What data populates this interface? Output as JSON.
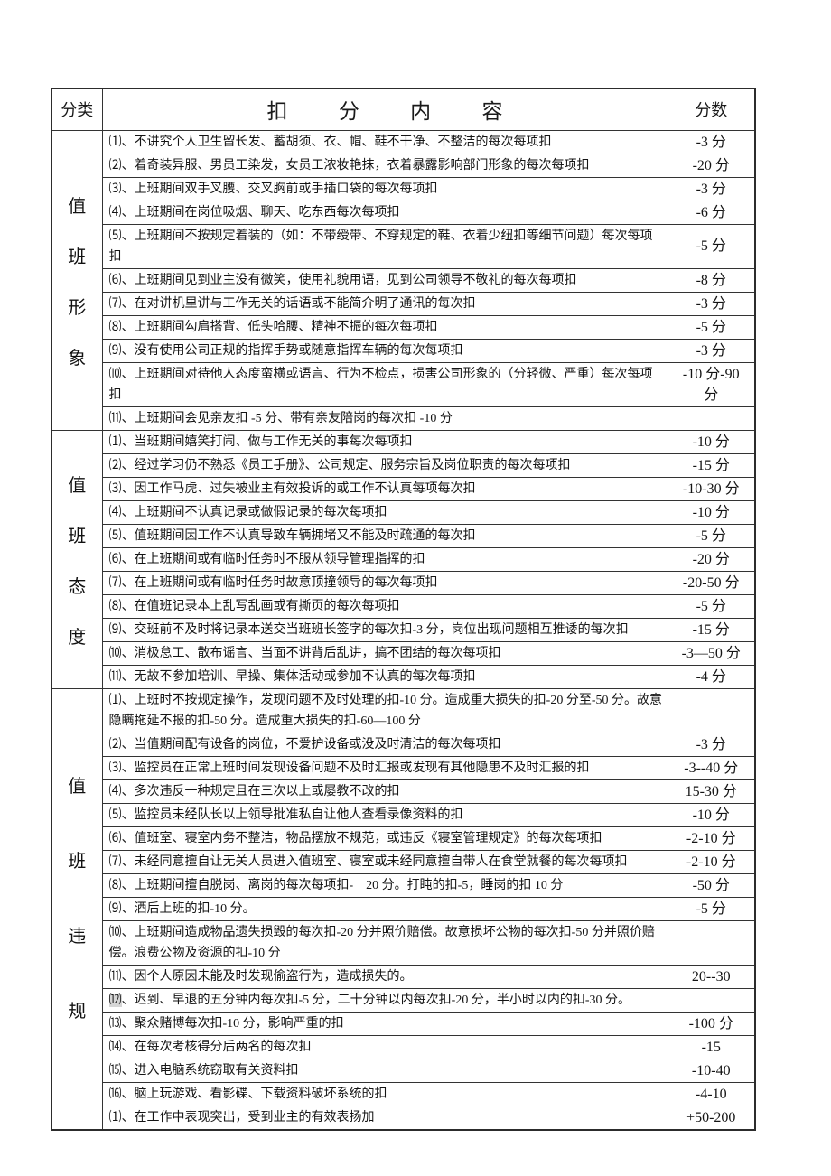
{
  "colors": {
    "background": "#ffffff",
    "border": "#333333",
    "text": "#141414",
    "marker_highlight": "#d6d6d6"
  },
  "table": {
    "header": {
      "category": "分类",
      "content": "扣分内容",
      "score": "分数"
    },
    "sections": [
      {
        "category": "值班形象",
        "category_chars": [
          "值",
          "班",
          "形",
          "象"
        ],
        "rows": [
          {
            "num": "⑴",
            "text": "、不讲究个人卫生留长发、蓄胡须、衣、帽、鞋不干净、不整洁的每次每项扣",
            "score": "-3 分"
          },
          {
            "num": "⑵",
            "text": "、着奇装异服、男员工染发，女员工浓妆艳抹，衣着暴露影响部门形象的每次每项扣",
            "score": "-20 分"
          },
          {
            "num": "⑶",
            "text": "、上班期间双手叉腰、交叉胸前或手插口袋的每次每项扣",
            "score": "-3 分"
          },
          {
            "num": "⑷",
            "text": "、上班期间在岗位吸烟、聊天、吃东西每次每项扣",
            "score": "-6 分"
          },
          {
            "num": "⑸",
            "text": "、上班期间不按规定着装的（如：不带绶带、不穿规定的鞋、衣着少纽扣等细节问题）每次每项扣",
            "score": "-5 分"
          },
          {
            "num": "⑹",
            "text": "、上班期间见到业主没有微笑，使用礼貌用语，见到公司领导不敬礼的每次每项扣",
            "score": "-8 分"
          },
          {
            "num": "⑺",
            "text": "、在对讲机里讲与工作无关的话语或不能简介明了通讯的每次扣",
            "score": "-3 分"
          },
          {
            "num": "⑻",
            "text": "、上班期间勾肩搭背、低头哈腰、精神不振的每次每项扣",
            "score": "-5 分"
          },
          {
            "num": "⑼",
            "text": "、没有使用公司正规的指挥手势或随意指挥车辆的每次每项扣",
            "score": "-3 分"
          },
          {
            "num": "⑽",
            "text": "、上班期间对待他人态度蛮横或语言、行为不检点，损害公司形象的（分轻微、严重）每次每项扣",
            "score": "-10 分-90 分"
          },
          {
            "num": "⑾",
            "text": "、上班期间会见亲友扣 -5 分、带有亲友陪岗的每次扣 -10 分",
            "score": ""
          }
        ]
      },
      {
        "category": "值班态度",
        "category_chars": [
          "值",
          "班",
          "态",
          "度"
        ],
        "rows": [
          {
            "num": "⑴",
            "text": "、当班期间嬉笑打闹、做与工作无关的事每次每项扣",
            "score": "-10 分"
          },
          {
            "num": "⑵",
            "text": "、经过学习仍不熟悉《员工手册》、公司规定、服务宗旨及岗位职责的每次每项扣",
            "score": "-15 分"
          },
          {
            "num": "⑶",
            "text": "、因工作马虎、过失被业主有效投诉的或工作不认真每项每次扣",
            "score": "-10-30 分"
          },
          {
            "num": "⑷",
            "text": "、上班期间不认真记录或做假记录的每次每项扣",
            "score": "-10 分"
          },
          {
            "num": "⑸",
            "text": "、值班期间因工作不认真导致车辆拥堵又不能及时疏通的每次扣",
            "score": "-5 分"
          },
          {
            "num": "⑹",
            "text": "、在上班期间或有临时任务时不服从领导管理指挥的扣",
            "score": "-20 分"
          },
          {
            "num": "⑺",
            "text": "、在上班期间或有临时任务时故意顶撞领导的每次每项扣",
            "score": "-20-50 分"
          },
          {
            "num": "⑻",
            "text": "、在值班记录本上乱写乱画或有撕页的每次每项扣",
            "score": "-5 分"
          },
          {
            "num": "⑼",
            "text": "、交班前不及时将记录本送交当班班长签字的每次扣-3 分，岗位出现问题相互推诿的每次扣",
            "score": "-15 分"
          },
          {
            "num": "⑽",
            "text": "、消极怠工、散布谣言、当面不讲背后乱讲，搞不团结的每次每项扣",
            "score": "-3—50 分"
          },
          {
            "num": "⑾",
            "text": "、无故不参加培训、早操、集体活动或参加不认真的每次每项扣",
            "score": "-4 分"
          }
        ]
      },
      {
        "category": "值班违规",
        "category_chars": [
          "值",
          "班",
          "违",
          "规"
        ],
        "rows": [
          {
            "num": "⑴",
            "text": "、上班时不按规定操作，发现问题不及时处理的扣-10 分。造成重大损失的扣-20 分至-50 分。故意隐瞒拖延不报的扣-50 分。造成重大损失的扣-60—100 分",
            "score": ""
          },
          {
            "num": "⑵",
            "text": "、当值期间配有设备的岗位，不爱护设备或没及时清洁的每次每项扣",
            "score": "-3 分"
          },
          {
            "num": "⑶",
            "text": "、监控员在正常上班时间发现设备问题不及时汇报或发现有其他隐患不及时汇报的扣",
            "score": "-3--40 分"
          },
          {
            "num": "⑷",
            "text": "、多次违反一种规定且在三次以上或屡教不改的扣",
            "score": "15-30 分"
          },
          {
            "num": "⑸",
            "text": "、监控员未经队长以上领导批准私自让他人查看录像资料的扣",
            "score": "-10 分"
          },
          {
            "num": "⑹",
            "text": "、值班室、寝室内务不整洁，物品摆放不规范，或违反《寝室管理规定》的每次每项扣",
            "score": "-2-10 分"
          },
          {
            "num": "⑺",
            "text": "、未经同意擅自让无关人员进入值班室、寝室或未经同意擅自带人在食堂就餐的每次每项扣",
            "score": "-2-10 分"
          },
          {
            "num": "⑻",
            "text": "、上班期间擅自脱岗、离岗的每次每项扣-　20 分。打盹的扣-5，睡岗的扣 10 分",
            "score": "-50 分"
          },
          {
            "num": "⑼",
            "text": "、酒后上班的扣-10 分。",
            "score": "-5 分"
          },
          {
            "num": "⑽",
            "text": "、上班期间造成物品遗失损毁的每次扣-20 分并照价赔偿。故意损坏公物的每次扣-50 分并照价赔偿。浪费公物及资源的扣-10 分",
            "score": ""
          },
          {
            "num": "⑾",
            "text": "、因个人原因未能及时发现偷盗行为，造成损失的。",
            "score": "20--30"
          },
          {
            "num": "⑿",
            "hl": true,
            "text": "、迟到、早退的五分钟内每次扣-5 分，二十分钟以内每次扣-20 分，半小时以内的扣-30 分。",
            "score": ""
          },
          {
            "num": "⒀",
            "text": "、聚众赌博每次扣-10 分，影响严重的扣",
            "score": "-100 分"
          },
          {
            "num": "⒁",
            "text": "、在每次考核得分后两名的每次扣",
            "score": "-15"
          },
          {
            "num": "⒂",
            "text": "、进入电脑系统窃取有关资料扣",
            "score": "-10-40"
          },
          {
            "num": "⒃",
            "text": "、脑上玩游戏、看影碟、下载资料破坏系统的扣",
            "score": "-4-10"
          }
        ]
      },
      {
        "category": "",
        "category_chars": [],
        "rows": [
          {
            "num": "⑴",
            "text": "、在工作中表现突出，受到业主的有效表扬加",
            "score": "+50-200"
          }
        ]
      }
    ]
  }
}
